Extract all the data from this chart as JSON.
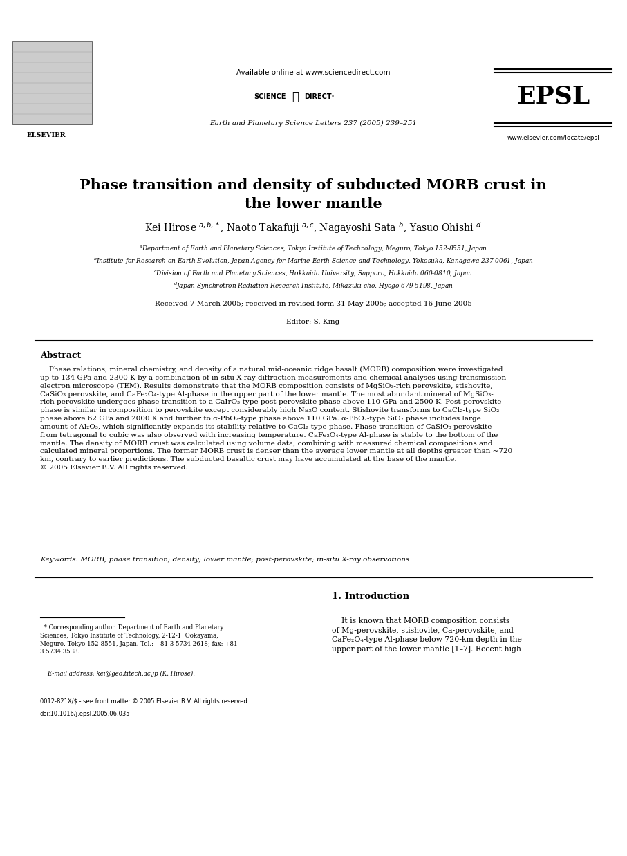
{
  "bg_color": "#ffffff",
  "page_width": 9.07,
  "page_height": 12.38,
  "header_available": "Available online at www.sciencedirect.com",
  "header_journal": "Earth and Planetary Science Letters 237 (2005) 239–251",
  "header_epsl": "EPSL",
  "header_website": "www.elsevier.com/locate/epsl",
  "header_science": "SCIENCE",
  "header_direct": "DIRECT·",
  "title_line1": "Phase transition and density of subducted MORB crust in",
  "title_line2": "the lower mantle",
  "authors_line": "Kei Hirose $^{a,b,*}$, Naoto Takafuji $^{a,c}$, Nagayoshi Sata $^{b}$, Yasuo Ohishi $^{d}$",
  "affil1": "$^{a}$Department of Earth and Planetary Sciences, Tokyo Institute of Technology, Meguro, Tokyo 152-8551, Japan",
  "affil2": "$^{b}$Institute for Research on Earth Evolution, Japan Agency for Marine-Earth Science and Technology, Yokosuka, Kanagawa 237-0061, Japan",
  "affil3": "$^{c}$Division of Earth and Planetary Sciences, Hokkaido University, Sapporo, Hokkaido 060-0810, Japan",
  "affil4": "$^{d}$Japan Synchrotron Radiation Research Institute, Mikazuki-cho, Hyogo 679-5198, Japan",
  "received": "Received 7 March 2005; received in revised form 31 May 2005; accepted 16 June 2005",
  "editor": "Editor: S. King",
  "abstract_title": "Abstract",
  "abstract_text": "    Phase relations, mineral chemistry, and density of a natural mid-oceanic ridge basalt (MORB) composition were investigated\nup to 134 GPa and 2300 K by a combination of in-situ X-ray diffraction measurements and chemical analyses using transmission\nelectron microscope (TEM). Results demonstrate that the MORB composition consists of MgSiO₃-rich perovskite, stishovite,\nCaSiO₃ perovskite, and CaFe₂O₄-type Al-phase in the upper part of the lower mantle. The most abundant mineral of MgSiO₃-\nrich perovskite undergoes phase transition to a CaIrO₃-type post-perovskite phase above 110 GPa and 2500 K. Post-perovskite\nphase is similar in composition to perovskite except considerably high Na₂O content. Stishovite transforms to CaCl₂-type SiO₂\nphase above 62 GPa and 2000 K and further to α-PbO₂-type phase above 110 GPa. α-PbO₂-type SiO₂ phase includes large\namount of Al₂O₃, which significantly expands its stability relative to CaCl₂-type phase. Phase transition of CaSiO₃ perovskite\nfrom tetragonal to cubic was also observed with increasing temperature. CaFe₂O₄-type Al-phase is stable to the bottom of the\nmantle. The density of MORB crust was calculated using volume data, combining with measured chemical compositions and\ncalculated mineral proportions. The former MORB crust is denser than the average lower mantle at all depths greater than ~720\nkm, contrary to earlier predictions. The subducted basaltic crust may have accumulated at the base of the mantle.\n© 2005 Elsevier B.V. All rights reserved.",
  "keywords": "Keywords: MORB; phase transition; density; lower mantle; post-perovskite; in-situ X-ray observations",
  "section1_title": "1. Introduction",
  "intro_text": "    It is known that MORB composition consists\nof Mg-perovskite, stishovite, Ca-perovskite, and\nCaFe₂O₄-type Al-phase below 720-km depth in the\nupper part of the lower mantle [1–7]. Recent high-",
  "footnote_star": "  * Corresponding author. Department of Earth and Planetary\nSciences, Tokyo Institute of Technology, 2-12-1  Ookayama,\nMeguro, Tokyo 152-8551, Japan. Tel.: +81 3 5734 2618; fax: +81\n3 5734 3538.",
  "footnote_email": "    E-mail address: kei@geo.titech.ac.jp (K. Hirose).",
  "copyright1": "0012-821X/$ - see front matter © 2005 Elsevier B.V. All rights reserved.",
  "copyright2": "doi:10.1016/j.epsl.2005.06.035"
}
